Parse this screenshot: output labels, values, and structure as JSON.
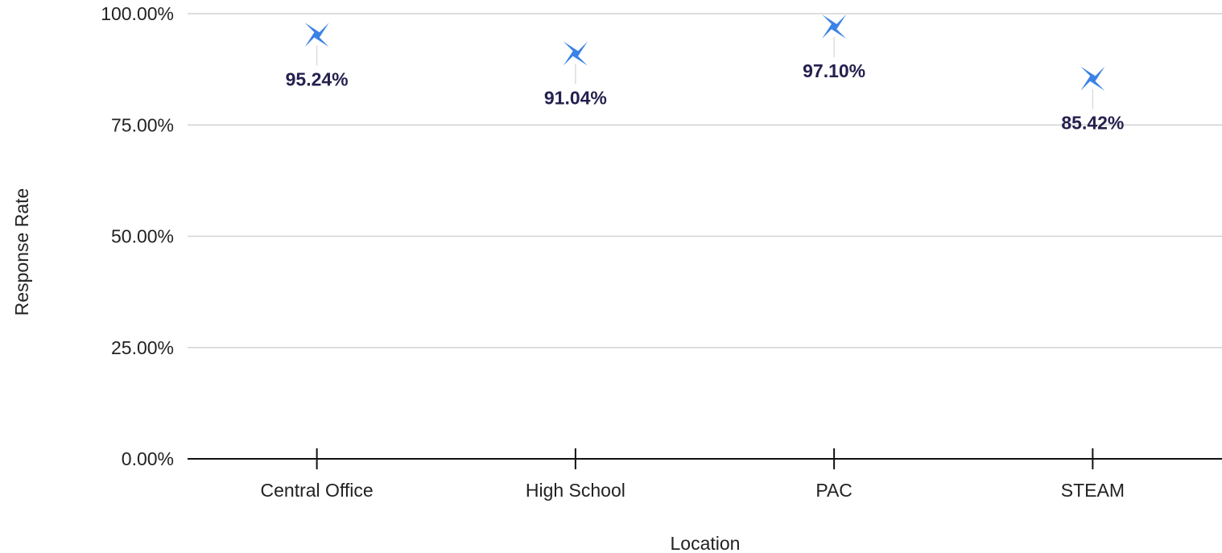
{
  "chart_data": {
    "type": "scatter",
    "categories": [
      "Central Office",
      "High School",
      "PAC",
      "STEAM"
    ],
    "values": [
      95.24,
      91.04,
      97.1,
      85.42
    ],
    "data_labels": [
      "95.24%",
      "91.04%",
      "97.10%",
      "85.42%"
    ],
    "xlabel": "Location",
    "ylabel": "Response Rate",
    "ylim": [
      0,
      100
    ],
    "y_ticks": [
      0,
      25,
      50,
      75,
      100
    ],
    "y_tick_labels": [
      "0.00%",
      "25.00%",
      "50.00%",
      "75.00%",
      "100.00%"
    ],
    "grid": true,
    "legend": "none",
    "marker": "four-point-star",
    "marker_color": "#3b82e6",
    "label_color": "#24214f"
  }
}
